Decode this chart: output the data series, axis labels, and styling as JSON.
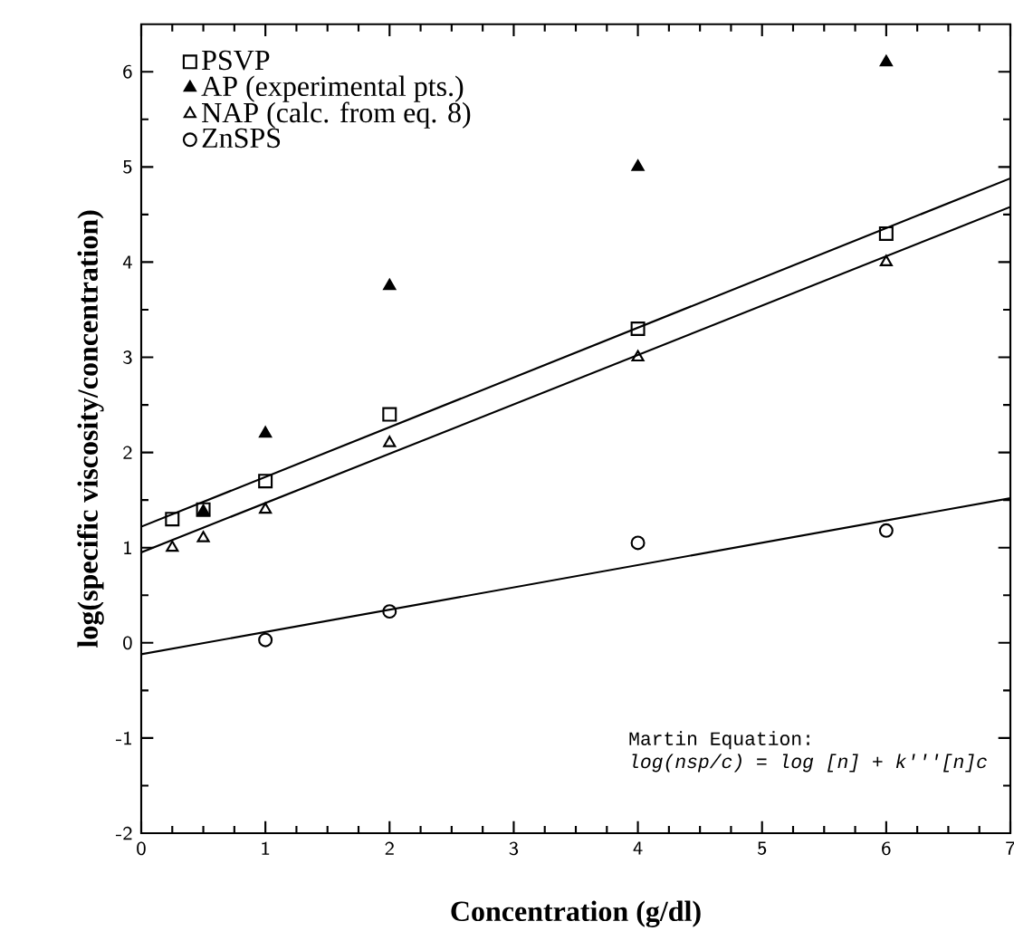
{
  "chart_data": {
    "type": "scatter",
    "xlabel": "Concentration  (g/dl)",
    "ylabel": "log(specific  viscosity/concentration)",
    "xlim": [
      0,
      7
    ],
    "ylim": [
      -2,
      6.5
    ],
    "xticks": [
      0,
      1,
      2,
      3,
      4,
      5,
      6,
      7
    ],
    "yticks": [
      -2,
      -1,
      0,
      1,
      2,
      3,
      4,
      5,
      6
    ],
    "legend": "top left",
    "grid": false,
    "annotations": [
      "Martin Equation:",
      "log(nsp/c) = log [n] + k'''[n]c"
    ],
    "series": [
      {
        "name": "PSVP",
        "color": "#000000",
        "marker": "square",
        "x": [
          0.25,
          0.5,
          1,
          2,
          4,
          6
        ],
        "values": [
          1.3,
          1.4,
          1.7,
          2.4,
          3.3,
          4.3
        ]
      },
      {
        "name": "AP (experimental pts.)",
        "color": "#000000",
        "marker": "triangle",
        "x": [
          0.5,
          1,
          2,
          4,
          6
        ],
        "values": [
          1.38,
          2.2,
          3.75,
          5.0,
          6.1
        ]
      },
      {
        "name": "NAP (calc. from eq. 8)",
        "color": "#000000",
        "marker": "triangle",
        "x": [
          0.25,
          0.5,
          1,
          2,
          4,
          6
        ],
        "values": [
          1.0,
          1.1,
          1.4,
          2.1,
          3.0,
          4.0
        ]
      },
      {
        "name": "ZnSPS",
        "color": "#000000",
        "marker": "circle",
        "x": [
          1,
          2,
          4,
          6
        ],
        "values": [
          0.03,
          0.33,
          1.05,
          1.18
        ]
      },
      {
        "type": "line",
        "color": "#000000",
        "line_style": "solid",
        "x": [
          0,
          7
        ],
        "values": [
          1.22,
          4.88
        ]
      },
      {
        "type": "line",
        "color": "#000000",
        "line_style": "solid",
        "x": [
          0,
          7
        ],
        "values": [
          0.95,
          4.58
        ]
      },
      {
        "type": "line",
        "color": "#000000",
        "line_style": "solid",
        "x": [
          0,
          7
        ],
        "values": [
          -0.12,
          1.52
        ]
      }
    ]
  }
}
